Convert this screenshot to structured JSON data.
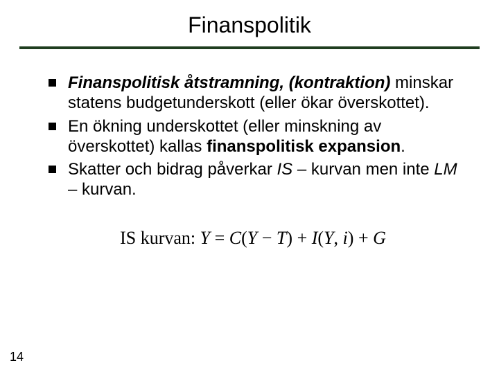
{
  "title": "Finanspolitik",
  "rule_color": "#1f3d1f",
  "bullets": {
    "b1": {
      "lead": "Finanspolitisk åtstramning, (kontraktion)",
      "rest": " minskar statens budgetunderskott (eller ökar överskottet)."
    },
    "b2": {
      "pre": "En ökning underskottet (eller minskning av överskottet) kallas ",
      "strong": "finanspolitisk expansion",
      "post": "."
    },
    "b3": {
      "pre": "Skatter och bidrag påverkar ",
      "is": "IS",
      "mid": " – kurvan men inte ",
      "lm": "LM",
      "post": " – kurvan."
    }
  },
  "equation": {
    "label": "IS kurvan: ",
    "Y": "Y",
    "eq": " = ",
    "C": "C",
    "lp": "(",
    "Yin": "Y",
    "minus": " − ",
    "T": "T",
    "rp": ")",
    "plus1": " + ",
    "I": "I",
    "lp2": "(",
    "Yin2": "Y",
    "comma": ", ",
    "i": "i",
    "rp2": ")",
    "plus2": " + ",
    "G": "G"
  },
  "page_number": "14",
  "colors": {
    "text": "#000000",
    "background": "#ffffff"
  }
}
